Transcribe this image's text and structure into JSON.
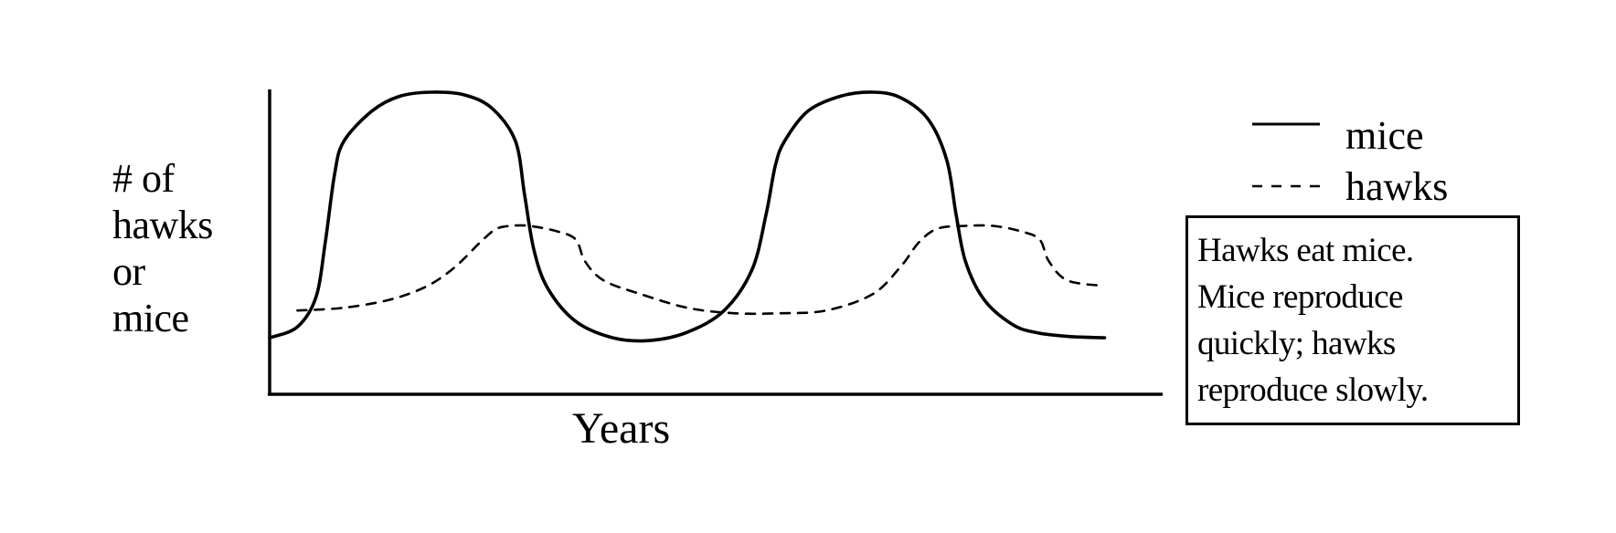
{
  "chart_data": {
    "type": "line",
    "title": "",
    "xlabel": "Years",
    "ylabel_lines": [
      "# of",
      "hawks",
      "or",
      "mice"
    ],
    "xlim": [
      0,
      100
    ],
    "ylim": [
      0,
      100
    ],
    "grid": false,
    "legend_placement": "right",
    "series": [
      {
        "name": "mice",
        "line_style": "solid",
        "color": "#000000",
        "x": [
          0,
          3,
          5,
          6,
          7,
          8,
          11,
          14,
          17.5,
          21,
          24,
          26.5,
          27.5,
          28.5,
          30,
          33,
          37,
          41,
          45,
          49,
          52,
          53.5,
          54.5,
          55.5,
          58,
          61.5,
          65,
          68,
          71,
          73,
          74,
          75,
          77,
          80,
          82.5,
          86,
          90
        ],
        "values": [
          10,
          14,
          25,
          45,
          70,
          82,
          93,
          98.5,
          100,
          99,
          94,
          82,
          62,
          42,
          28,
          16,
          10,
          9,
          12,
          20,
          35,
          55,
          73,
          82,
          93,
          98.5,
          100,
          98,
          90,
          75,
          55,
          38,
          24,
          15,
          12,
          10.5,
          10
        ]
      },
      {
        "name": "hawks",
        "line_style": "dashed",
        "color": "#000000",
        "x": [
          3,
          8,
          13,
          17,
          20,
          23,
          24.5,
          26,
          28,
          31,
          33,
          34,
          36,
          40,
          45,
          50,
          55,
          60,
          65,
          68,
          70,
          72,
          75,
          78,
          81,
          83,
          84,
          86,
          90
        ],
        "values": [
          20,
          21,
          24,
          29,
          36,
          46,
          50,
          51,
          51,
          49,
          46,
          38,
          31,
          26,
          21,
          19,
          19,
          20,
          26,
          36,
          45,
          50,
          51,
          51,
          49,
          46,
          38,
          31,
          29
        ]
      }
    ]
  },
  "note_box": {
    "lines": [
      "Hawks eat mice.",
      "Mice reproduce",
      "quickly; hawks",
      "reproduce slowly."
    ]
  },
  "colors": {
    "ink": "#000000",
    "background": "#ffffff"
  }
}
